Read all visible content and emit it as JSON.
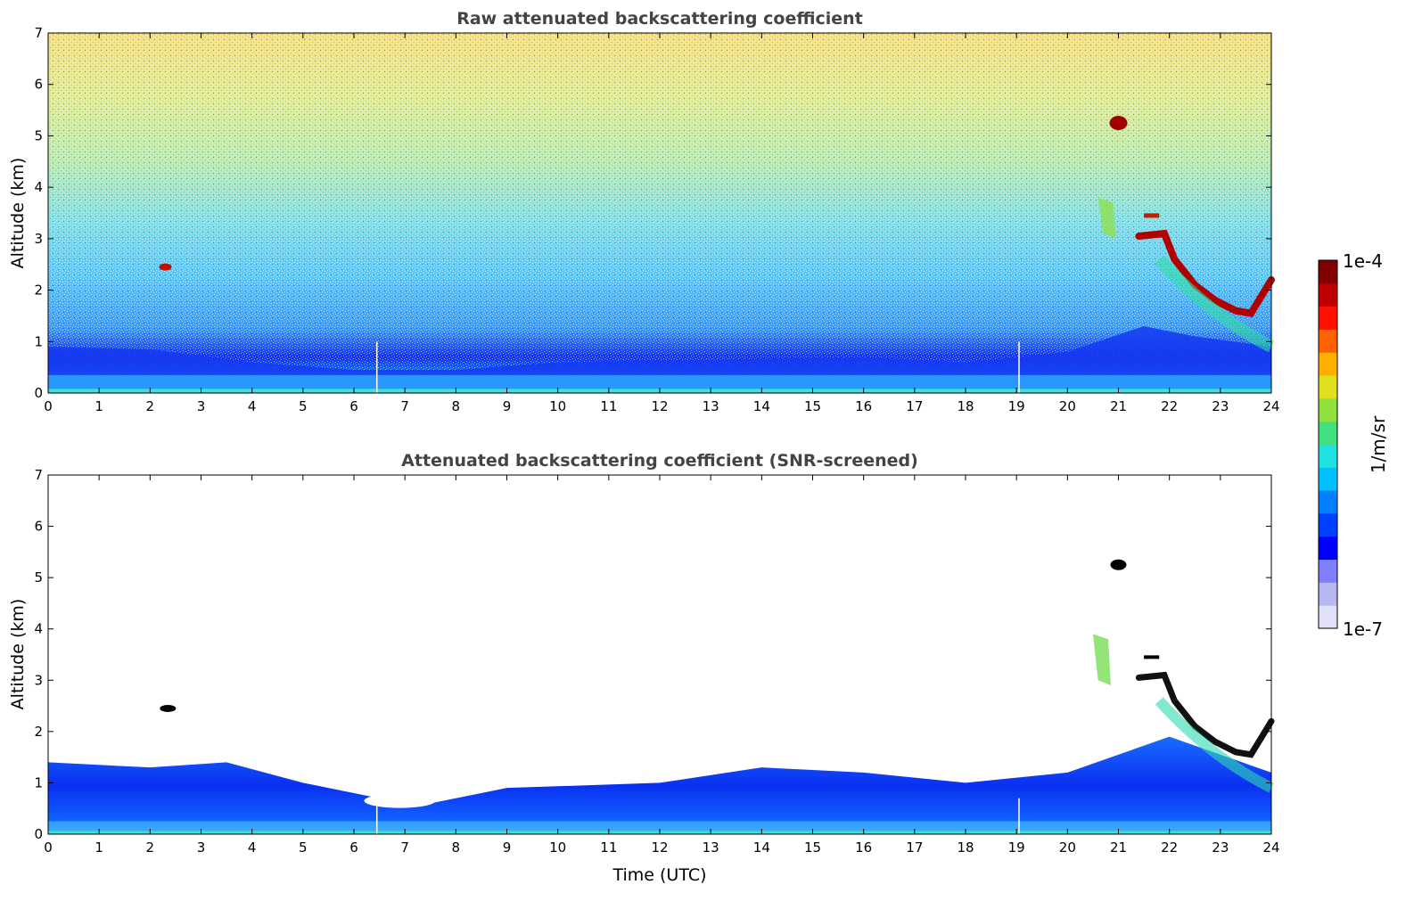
{
  "chart_data": [
    {
      "type": "heatmap",
      "title": "Raw attenuated backscattering coefficient",
      "xlabel": "",
      "ylabel": "Altitude (km)",
      "xlim": [
        0,
        24
      ],
      "ylim": [
        0,
        7
      ],
      "xticks": [
        "0",
        "1",
        "2",
        "3",
        "4",
        "5",
        "6",
        "7",
        "8",
        "9",
        "10",
        "11",
        "12",
        "13",
        "14",
        "15",
        "16",
        "17",
        "18",
        "19",
        "20",
        "21",
        "22",
        "23",
        "24"
      ],
      "yticks": [
        "0",
        "1",
        "2",
        "3",
        "4",
        "5",
        "6",
        "7"
      ],
      "features": [
        {
          "kind": "boundary_layer",
          "x_range": [
            0,
            24
          ],
          "alt_range_km": [
            0,
            1.0
          ]
        },
        {
          "kind": "cloud",
          "time_utc": [
            2.2,
            2.4
          ],
          "alt_km": 2.45
        },
        {
          "kind": "cloud",
          "time_utc": [
            20.8,
            21.2
          ],
          "alt_km": [
            5.1,
            5.4
          ]
        },
        {
          "kind": "cloud",
          "time_utc": [
            21.0,
            24.0
          ],
          "alt_km": [
            1.4,
            3.8
          ]
        },
        {
          "kind": "missing_profile",
          "time_utc": 6.45
        },
        {
          "kind": "missing_profile",
          "time_utc": 19.05
        }
      ]
    },
    {
      "type": "heatmap",
      "title": "Attenuated backscattering coefficient (SNR-screened)",
      "xlabel": "Time (UTC)",
      "ylabel": "Altitude (km)",
      "xlim": [
        0,
        24
      ],
      "ylim": [
        0,
        7
      ],
      "xticks": [
        "0",
        "1",
        "2",
        "3",
        "4",
        "5",
        "6",
        "7",
        "8",
        "9",
        "10",
        "11",
        "12",
        "13",
        "14",
        "15",
        "16",
        "17",
        "18",
        "19",
        "20",
        "21",
        "22",
        "23",
        "24"
      ],
      "yticks": [
        "0",
        "1",
        "2",
        "3",
        "4",
        "5",
        "6",
        "7"
      ],
      "features": [
        {
          "kind": "boundary_layer_top_km",
          "x": [
            0,
            2,
            3.5,
            5,
            6.5,
            7.5,
            9,
            12,
            14,
            16,
            18,
            20,
            22,
            24
          ],
          "y": [
            1.4,
            1.3,
            1.4,
            1.0,
            0.7,
            0.6,
            0.9,
            1.0,
            1.3,
            1.2,
            1.0,
            1.2,
            1.9,
            1.2
          ]
        },
        {
          "kind": "cloud",
          "time_utc": [
            2.2,
            2.7
          ],
          "alt_km": 2.45
        },
        {
          "kind": "cloud",
          "time_utc": [
            20.8,
            21.2
          ],
          "alt_km": [
            5.1,
            5.4
          ]
        },
        {
          "kind": "cloud",
          "time_utc": [
            21.0,
            24.0
          ],
          "alt_km": [
            1.4,
            3.8
          ]
        }
      ]
    }
  ],
  "colorbar": {
    "label": "1/m/sr",
    "max_label": "1e-4",
    "min_label": "1e-7",
    "colors": [
      "#e0e0f8",
      "#b8b8f0",
      "#8080ff",
      "#0000ff",
      "#0040ff",
      "#0080ff",
      "#00c0ff",
      "#20e0e0",
      "#40e080",
      "#90e040",
      "#e0e020",
      "#ffb000",
      "#ff6000",
      "#ff1000",
      "#c00000",
      "#800000"
    ]
  }
}
